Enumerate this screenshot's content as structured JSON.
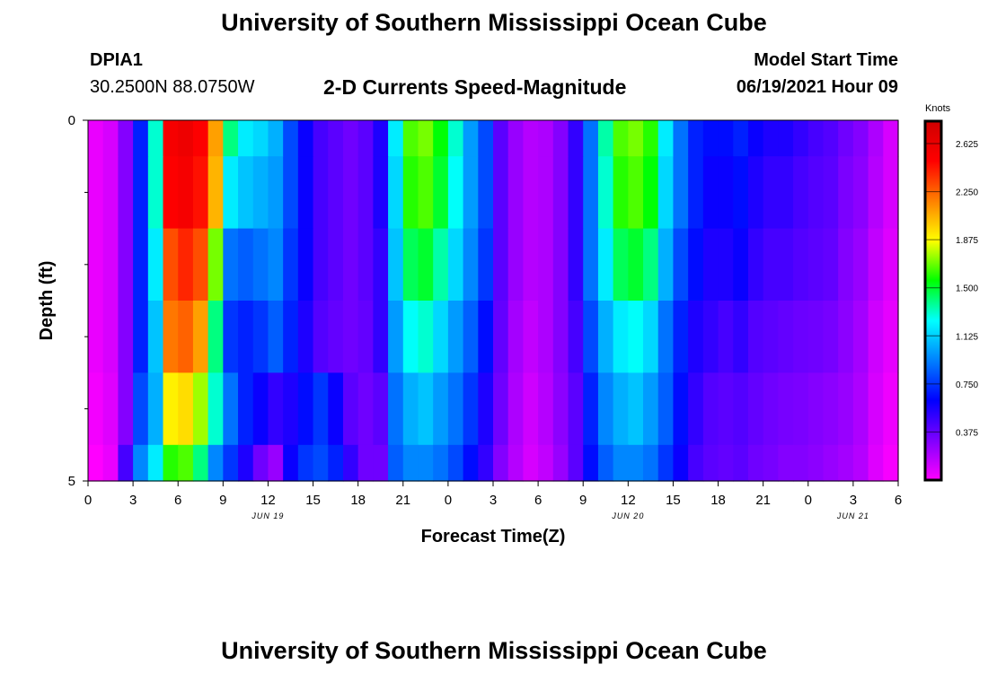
{
  "header": {
    "title_top": "University of Southern Mississippi Ocean Cube",
    "station_id": "DPIA1",
    "station_coords": "30.2500N  88.0750W",
    "chart_title": "2-D Currents Speed-Magnitude",
    "model_start_label": "Model Start Time",
    "model_start_value": "06/19/2021 Hour 09",
    "title_bottom": "University of Southern Mississippi Ocean Cube"
  },
  "chart_data": {
    "type": "heatmap",
    "title": "2-D Currents Speed-Magnitude",
    "xlabel": "Forecast Time(Z)",
    "ylabel": "Depth (ft)",
    "ylim": [
      0,
      5
    ],
    "y_tick_labels": [
      "0",
      "5"
    ],
    "x_range_hours_from_jun19_00z": [
      0,
      54
    ],
    "x_tick_labels": [
      "0",
      "3",
      "6",
      "9",
      "12",
      "15",
      "18",
      "21",
      "0",
      "3",
      "6",
      "9",
      "12",
      "15",
      "18",
      "21",
      "0",
      "3",
      "6"
    ],
    "date_labels": [
      {
        "text": "JUN 19",
        "hour": 12
      },
      {
        "text": "JUN 20",
        "hour": 36
      },
      {
        "text": "JUN 21",
        "hour": 51
      }
    ],
    "colorbar": {
      "unit": "Knots",
      "min": 0,
      "max": 2.8,
      "tick_values": [
        0.375,
        0.75,
        1.125,
        1.5,
        1.875,
        2.25,
        2.625
      ],
      "tick_labels": [
        "0.375",
        "0.750",
        "1.125",
        "1.500",
        "1.875",
        "2.250",
        "2.625"
      ]
    },
    "layers": [
      {
        "depth": "0.0-0.5",
        "values": [
          0.05,
          0.1,
          0.3,
          0.7,
          1.3,
          2.55,
          2.6,
          2.5,
          2.1,
          1.4,
          1.2,
          1.15,
          1.05,
          0.8,
          0.6,
          0.45,
          0.4,
          0.35,
          0.4,
          0.55,
          1.2,
          1.65,
          1.7,
          1.55,
          1.3,
          1.0,
          0.8,
          0.4,
          0.25,
          0.18,
          0.2,
          0.3,
          0.5,
          0.9,
          1.35,
          1.65,
          1.7,
          1.6,
          1.2,
          0.9,
          0.7,
          0.65,
          0.65,
          0.7,
          0.6,
          0.55,
          0.55,
          0.5,
          0.45,
          0.42,
          0.35,
          0.3,
          0.2,
          0.1
        ]
      },
      {
        "depth": "0.5-1.5",
        "values": [
          0.05,
          0.1,
          0.3,
          0.7,
          1.3,
          2.5,
          2.55,
          2.45,
          2.05,
          1.2,
          1.1,
          1.05,
          1.0,
          0.8,
          0.6,
          0.45,
          0.4,
          0.35,
          0.4,
          0.55,
          1.15,
          1.6,
          1.65,
          1.5,
          1.25,
          1.0,
          0.8,
          0.4,
          0.25,
          0.18,
          0.2,
          0.3,
          0.5,
          0.9,
          1.3,
          1.6,
          1.65,
          1.55,
          1.15,
          0.9,
          0.7,
          0.6,
          0.6,
          0.65,
          0.55,
          0.5,
          0.5,
          0.45,
          0.42,
          0.4,
          0.32,
          0.28,
          0.18,
          0.1
        ]
      },
      {
        "depth": "1.5-2.5",
        "values": [
          0.05,
          0.1,
          0.3,
          0.7,
          1.2,
          2.3,
          2.4,
          2.3,
          1.7,
          0.9,
          0.85,
          0.9,
          0.95,
          0.75,
          0.6,
          0.45,
          0.4,
          0.35,
          0.4,
          0.5,
          1.1,
          1.45,
          1.5,
          1.35,
          1.15,
          0.95,
          0.75,
          0.4,
          0.25,
          0.18,
          0.2,
          0.3,
          0.5,
          0.9,
          1.2,
          1.45,
          1.5,
          1.4,
          1.05,
          0.8,
          0.65,
          0.55,
          0.55,
          0.6,
          0.5,
          0.45,
          0.45,
          0.42,
          0.4,
          0.38,
          0.3,
          0.25,
          0.15,
          0.08
        ]
      },
      {
        "depth": "2.5-3.5",
        "values": [
          0.05,
          0.1,
          0.3,
          0.7,
          1.1,
          2.2,
          2.25,
          2.1,
          1.4,
          0.75,
          0.7,
          0.75,
          0.85,
          0.7,
          0.55,
          0.42,
          0.38,
          0.35,
          0.38,
          0.5,
          1.0,
          1.25,
          1.3,
          1.15,
          1.0,
          0.85,
          0.65,
          0.38,
          0.22,
          0.15,
          0.2,
          0.3,
          0.45,
          0.8,
          1.05,
          1.2,
          1.25,
          1.15,
          0.9,
          0.7,
          0.55,
          0.5,
          0.45,
          0.5,
          0.42,
          0.4,
          0.38,
          0.36,
          0.35,
          0.33,
          0.28,
          0.22,
          0.12,
          0.06
        ]
      },
      {
        "depth": "3.5-4.5",
        "values": [
          0.03,
          0.08,
          0.3,
          0.8,
          1.05,
          1.9,
          1.95,
          1.75,
          1.3,
          0.9,
          0.7,
          0.6,
          0.5,
          0.55,
          0.65,
          0.75,
          0.6,
          0.4,
          0.35,
          0.4,
          0.9,
          1.05,
          1.1,
          1.0,
          0.9,
          0.75,
          0.55,
          0.35,
          0.2,
          0.12,
          0.18,
          0.28,
          0.4,
          0.7,
          0.95,
          1.05,
          1.1,
          1.0,
          0.85,
          0.65,
          0.5,
          0.42,
          0.4,
          0.42,
          0.38,
          0.35,
          0.33,
          0.32,
          0.3,
          0.28,
          0.25,
          0.2,
          0.1,
          0.04
        ]
      },
      {
        "depth": "4.5-5.0",
        "values": [
          0.0,
          0.05,
          0.45,
          0.95,
          1.2,
          1.6,
          1.65,
          1.4,
          0.95,
          0.75,
          0.55,
          0.35,
          0.25,
          0.6,
          0.75,
          0.8,
          0.7,
          0.5,
          0.35,
          0.35,
          0.85,
          0.95,
          0.95,
          0.9,
          0.8,
          0.65,
          0.5,
          0.3,
          0.18,
          0.1,
          0.15,
          0.25,
          0.4,
          0.65,
          0.85,
          0.95,
          0.95,
          0.9,
          0.75,
          0.6,
          0.45,
          0.4,
          0.38,
          0.4,
          0.35,
          0.33,
          0.3,
          0.3,
          0.28,
          0.25,
          0.22,
          0.18,
          0.08,
          0.02
        ]
      }
    ]
  },
  "colors": {
    "scale": [
      "#ff00ff",
      "#7f00ff",
      "#0000ff",
      "#0080ff",
      "#00ffff",
      "#00ff00",
      "#ffff00",
      "#ff8000",
      "#ff0000",
      "#d00000"
    ]
  }
}
